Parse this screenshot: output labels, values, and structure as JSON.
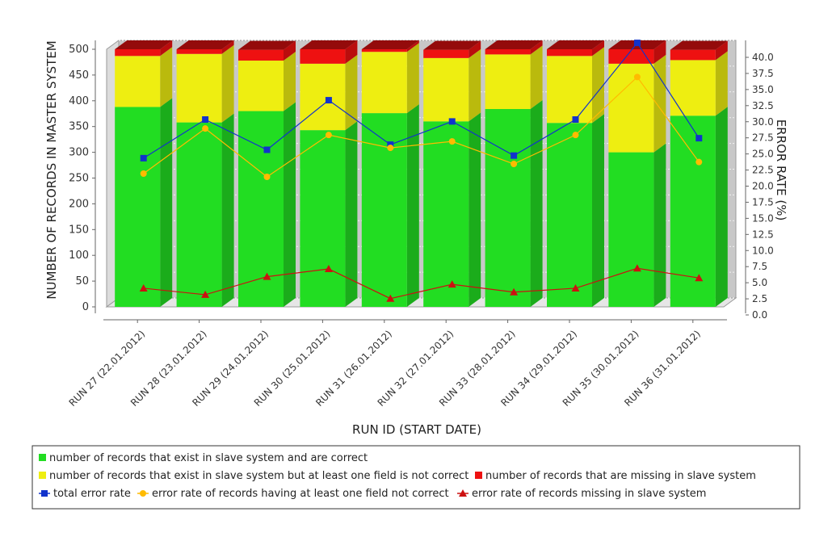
{
  "chart_data": {
    "type": "bar",
    "stacked": true,
    "three_d": true,
    "xlabel": "RUN ID (START DATE)",
    "ylabel": "NUMBER OF RECORDS IN MASTER SYSTEM",
    "y2label": "ERROR RATE (%)",
    "ylim": [
      0,
      500
    ],
    "y2lim": [
      0,
      40
    ],
    "yticks": [
      0,
      50,
      100,
      150,
      200,
      250,
      300,
      350,
      400,
      450,
      500
    ],
    "y2ticks": [
      "0.0",
      "2.5",
      "5.0",
      "7.5",
      "10.0",
      "12.5",
      "15.0",
      "17.5",
      "20.0",
      "22.5",
      "25.0",
      "27.5",
      "30.0",
      "32.5",
      "35.0",
      "37.5",
      "40.0"
    ],
    "grid": true,
    "legend_position": "bottom",
    "categories": [
      "RUN 27 (22.01.2012)",
      "RUN 28 (23.01.2012)",
      "RUN 29 (24.01.2012)",
      "RUN 30 (25.01.2012)",
      "RUN 31 (26.01.2012)",
      "RUN 32 (27.01.2012)",
      "RUN 33 (28.01.2012)",
      "RUN 34 (29.01.2012)",
      "RUN 35 (30.01.2012)",
      "RUN 36 (31.01.2012)"
    ],
    "bar_series": [
      {
        "name": "number of records that exist in slave system and are correct",
        "color": "#22dd22",
        "values": [
          388,
          358,
          380,
          343,
          376,
          360,
          384,
          357,
          300,
          371
        ]
      },
      {
        "name": "number of records that exist in slave system but at least one field is not correct",
        "color": "#eeee11",
        "values": [
          99,
          133,
          98,
          129,
          119,
          123,
          106,
          130,
          172,
          108
        ]
      },
      {
        "name": "number of records that are missing in slave system",
        "color": "#ee1111",
        "values": [
          13,
          9,
          21,
          28,
          5,
          16,
          10,
          13,
          28,
          20
        ]
      }
    ],
    "line_series": [
      {
        "name": "total error rate",
        "color": "#1133cc",
        "marker": "square",
        "values": [
          22.4,
          28.4,
          23.7,
          31.4,
          24.5,
          28.1,
          22.8,
          28.4,
          40.3,
          25.5
        ]
      },
      {
        "name": "error rate of records having at least one field not correct",
        "color": "#ffbb00",
        "marker": "circle",
        "values": [
          20.0,
          27.0,
          19.5,
          26.0,
          24.0,
          25.0,
          21.5,
          26.0,
          35.0,
          21.8
        ]
      },
      {
        "name": "error rate of records missing in slave system",
        "color": "#cc1111",
        "marker": "triangle",
        "values": [
          2.2,
          1.2,
          4.0,
          5.2,
          0.6,
          2.8,
          1.6,
          2.2,
          5.3,
          3.8
        ]
      }
    ]
  }
}
